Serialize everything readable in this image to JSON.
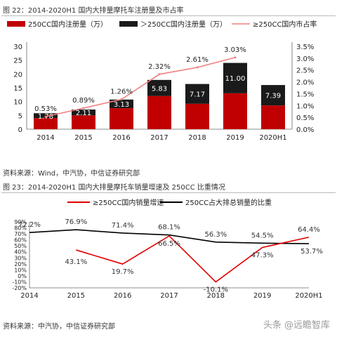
{
  "figures": [
    {
      "title": "图 22：2014-2020H1 国内大排量摩托车注册量及市占率",
      "source": "资料来源：Wind，中汽协，中信证券研究部"
    },
    {
      "title": "图 23：2014-2020H1 国内大排量摩托车销量增速及 250CC 比重情况",
      "source": "资料来源：中汽协，中信证券研究部"
    }
  ],
  "watermark": "头条 @远瞻智库",
  "colors": {
    "red": "#c00000",
    "black": "#1a1a1a",
    "pink": "#f08080"
  },
  "chart_data": [
    {
      "type": "bar",
      "stacked": true,
      "categories": [
        "2014",
        "2015",
        "2016",
        "2017",
        "2018",
        "2019",
        "2020H1"
      ],
      "series": [
        {
          "name": "250CC国内注册量（万）",
          "values": [
            4.0,
            5.0,
            7.6,
            12.0,
            9.2,
            13.0,
            8.6
          ],
          "labels": [
            "",
            "",
            "",
            "",
            "",
            "",
            ""
          ],
          "color": "#c00000"
        },
        {
          "name": "＞250CC国内注册量（万）",
          "values": [
            1.78,
            2.11,
            3.13,
            5.83,
            7.17,
            11.0,
            7.39
          ],
          "labels": [
            "1.78",
            "2.11",
            "3.13",
            "5.83",
            "7.17",
            "11.00",
            "7.39"
          ],
          "color": "#1a1a1a"
        },
        {
          "name": "≥250CC国内市占率",
          "axis": "right",
          "values": [
            0.53,
            0.89,
            1.26,
            2.32,
            2.61,
            3.03,
            null
          ],
          "labels": [
            "0.53%",
            "0.89%",
            "1.26%",
            "2.32%",
            "2.61%",
            "3.03%",
            ""
          ],
          "color": "#f08080"
        }
      ],
      "ylim": [
        0,
        30
      ],
      "yticks": [
        "0",
        "5",
        "10",
        "15",
        "20",
        "25",
        "30"
      ],
      "y2lim": [
        0,
        3.5
      ],
      "y2ticks": [
        "0.0%",
        "0.5%",
        "1.0%",
        "1.5%",
        "2.0%",
        "2.5%",
        "3.0%",
        "3.5%"
      ],
      "legend": "top",
      "grid": false
    },
    {
      "type": "line",
      "categories": [
        "2014",
        "2015",
        "2016",
        "2017",
        "2018",
        "2019",
        "2020H1"
      ],
      "series": [
        {
          "name": "≥250CC国内销量增速",
          "values": [
            null,
            43.1,
            19.7,
            66.5,
            -10.1,
            47.3,
            64.4
          ],
          "labels": [
            "",
            "43.1%",
            "19.7%",
            "66.5%",
            "-10.1%",
            "47.3%",
            "64.4%"
          ],
          "color": "#e00000"
        },
        {
          "name": "250CC占大排总销量的比重",
          "values": [
            72.2,
            76.9,
            71.4,
            68.1,
            56.3,
            54.5,
            53.7
          ],
          "labels": [
            "72.2%",
            "76.9%",
            "71.4%",
            "68.1%",
            "56.3%",
            "54.5%",
            "53.7%"
          ],
          "color": "#000000"
        }
      ],
      "ylim": [
        -20,
        90
      ],
      "yticks": [
        "-20%",
        "-10%",
        "0%",
        "10%",
        "20%",
        "30%",
        "40%",
        "50%",
        "60%",
        "70%",
        "80%",
        "90%"
      ],
      "legend": "top",
      "grid": false
    }
  ]
}
